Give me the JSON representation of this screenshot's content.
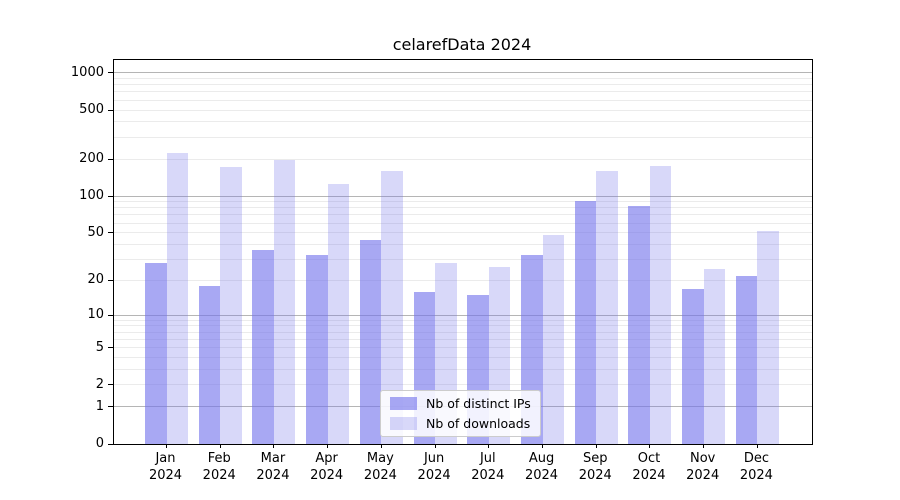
{
  "chart_data": {
    "type": "bar",
    "title": "celarefData 2024",
    "categories": [
      "Jan 2024",
      "Feb 2024",
      "Mar 2024",
      "Apr 2024",
      "May 2024",
      "Jun 2024",
      "Jul 2024",
      "Aug 2024",
      "Sep 2024",
      "Oct 2024",
      "Nov 2024",
      "Dec 2024"
    ],
    "series": [
      {
        "name": "Nb of distinct IPs",
        "color": "rgba(115,115,235,0.62)",
        "values": [
          28,
          18,
          36,
          33,
          44,
          16,
          15,
          33,
          92,
          83,
          17,
          22
        ]
      },
      {
        "name": "Nb of downloads",
        "color": "rgba(115,115,235,0.28)",
        "values": [
          223,
          172,
          196,
          125,
          161,
          28,
          26,
          48,
          161,
          175,
          25,
          52
        ]
      }
    ],
    "xlabel": "",
    "ylabel": "",
    "y_ticks": [
      0,
      1,
      2,
      5,
      10,
      20,
      50,
      100,
      200,
      500,
      1000
    ],
    "y_scale": "log10(value+1)",
    "ylim": [
      0,
      1270
    ],
    "grid": "horizontal major (1,10,100,1000) + minor (2-9 per decade)",
    "legend_position": "inside lower-center"
  },
  "colors": {
    "bar_distinct_ips": "rgba(115,115,235,0.62)",
    "bar_downloads": "rgba(115,115,235,0.28)",
    "grid_major": "#b5b5b5",
    "grid_minor": "#ebebeb",
    "spine": "#000000",
    "legend_border": "#cccccc",
    "background": "#ffffff",
    "text": "#000000"
  }
}
